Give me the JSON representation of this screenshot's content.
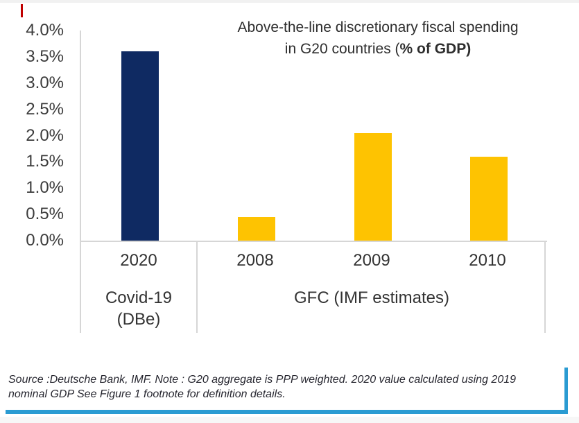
{
  "chart": {
    "title_line1": "Above-the-line discretionary fiscal spending",
    "title_line2_regular": "in G20 countries (",
    "title_line2_bold": "% of GDP)"
  },
  "chart_data": {
    "type": "bar",
    "title": "Above-the-line discretionary fiscal spending in G20 countries (% of GDP)",
    "categories": [
      "2020",
      "2008",
      "2009",
      "2010"
    ],
    "values": [
      3.6,
      0.45,
      2.05,
      1.6
    ],
    "bar_colors": [
      "#0f2a62",
      "#fec301",
      "#fec301",
      "#fec301"
    ],
    "unit": "% of GDP",
    "yticks": [
      "4.0%",
      "3.5%",
      "3.0%",
      "2.5%",
      "2.0%",
      "1.5%",
      "1.0%",
      "0.5%",
      "0.0%"
    ],
    "ylim": [
      0,
      4.0
    ],
    "grid": false,
    "legend": false,
    "groups": [
      {
        "label_lines": [
          "Covid-19",
          "(DBe)"
        ],
        "categories": [
          "2020"
        ]
      },
      {
        "label_lines": [
          "GFC (IMF estimates)"
        ],
        "categories": [
          "2008",
          "2009",
          "2010"
        ]
      }
    ]
  },
  "colors": {
    "covid_bar": "#0f2a62",
    "gfc_bar": "#fec301",
    "accent_blue": "#2a9bd2",
    "axis_gray": "#d6d6d6",
    "red_artifact": "#c00000"
  },
  "footer": {
    "line1": "Source :Deutsche Bank, IMF. Note : G20 aggregate is PPP weighted. 2020 value calculated using 2019",
    "line2": "nominal GDP See Figure 1 footnote for definition details."
  }
}
